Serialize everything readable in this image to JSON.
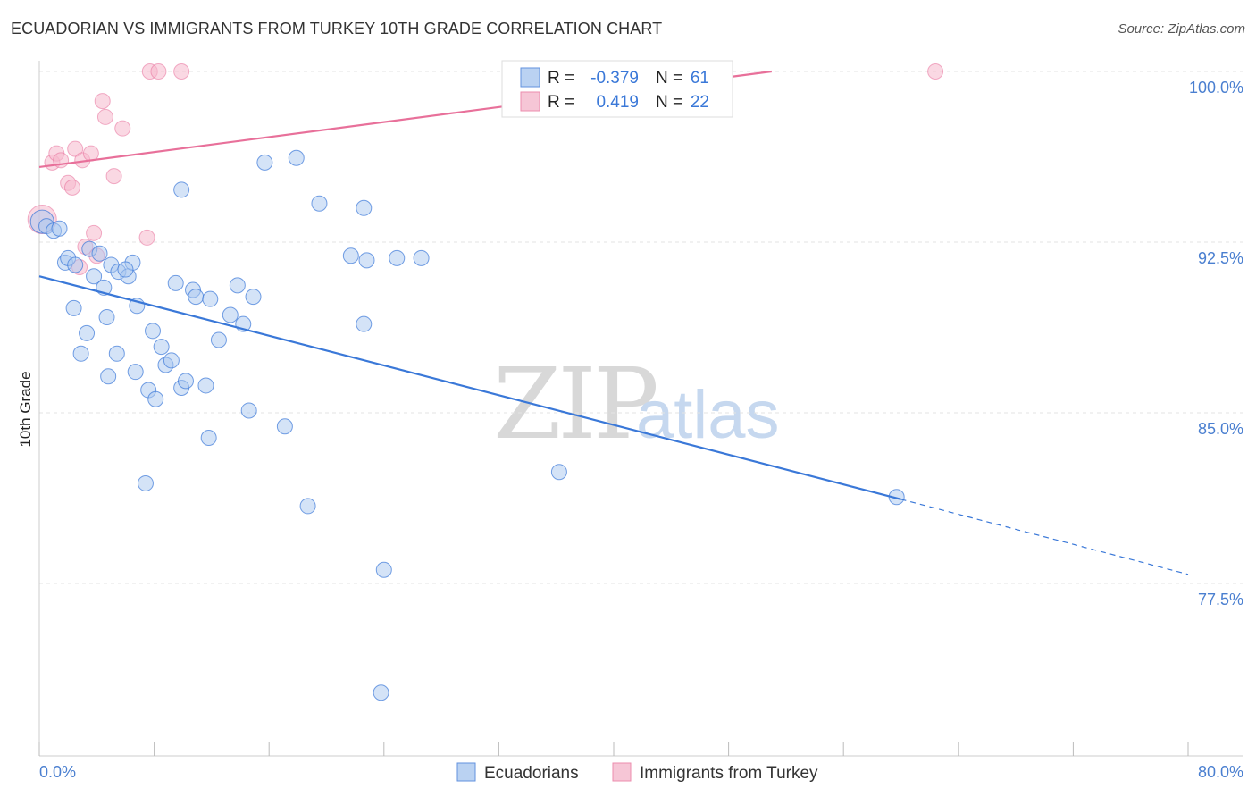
{
  "title": "ECUADORIAN VS IMMIGRANTS FROM TURKEY 10TH GRADE CORRELATION CHART",
  "source": "Source: ZipAtlas.com",
  "watermark": {
    "zip": "ZIP",
    "atlas": "atlas"
  },
  "colors": {
    "blue": "#3a78d8",
    "blue_fill": "#a9c8f0",
    "pink": "#e8709a",
    "pink_fill": "#f5b8cc",
    "grid": "#e3e3e3",
    "tick_label": "#4a7fd0"
  },
  "stats": [
    {
      "r_label": "R =",
      "r_value": "-0.379",
      "n_label": "N =",
      "n_value": "61",
      "color": "#3a78d8"
    },
    {
      "r_label": "R =",
      "r_value": "0.419",
      "n_label": "N =",
      "n_value": "22",
      "color": "#e8709a"
    }
  ],
  "legend": [
    {
      "label": "Ecuadorians",
      "color": "#3a78d8"
    },
    {
      "label": "Immigrants from Turkey",
      "color": "#e8709a"
    }
  ],
  "chart_data": {
    "type": "scatter",
    "ylabel": "10th Grade",
    "xlim": [
      0,
      80
    ],
    "ylim": [
      71.5,
      101.5
    ],
    "x_tick_labels": [
      "0.0%",
      "80.0%"
    ],
    "y_ticks": [
      {
        "value": 100.0,
        "label": "100.0%"
      },
      {
        "value": 92.5,
        "label": "92.5%"
      },
      {
        "value": 85.0,
        "label": "85.0%"
      },
      {
        "value": 77.5,
        "label": "77.5%"
      }
    ],
    "grid": true,
    "series": [
      {
        "name": "Ecuadorians",
        "color": "#3a78d8",
        "trend": {
          "x0": 0,
          "y0": 91.0,
          "x1": 60.0,
          "y1": 81.2,
          "dash_to_x": 80,
          "dash_to_y": 77.9
        },
        "points": [
          [
            0.2,
            93.4
          ],
          [
            0.5,
            93.2
          ],
          [
            1.0,
            93.0
          ],
          [
            1.4,
            93.1
          ],
          [
            1.8,
            91.6
          ],
          [
            2.0,
            91.8
          ],
          [
            2.5,
            91.5
          ],
          [
            3.5,
            92.2
          ],
          [
            3.8,
            91.0
          ],
          [
            4.2,
            92.0
          ],
          [
            4.5,
            90.5
          ],
          [
            5.0,
            91.5
          ],
          [
            5.5,
            91.2
          ],
          [
            6.2,
            91.0
          ],
          [
            6.5,
            91.6
          ],
          [
            2.4,
            89.6
          ],
          [
            3.3,
            88.5
          ],
          [
            2.9,
            87.6
          ],
          [
            4.7,
            89.2
          ],
          [
            5.4,
            87.6
          ],
          [
            4.8,
            86.6
          ],
          [
            6.8,
            89.7
          ],
          [
            7.9,
            88.6
          ],
          [
            6.7,
            86.8
          ],
          [
            7.6,
            86.0
          ],
          [
            8.1,
            85.6
          ],
          [
            8.5,
            87.9
          ],
          [
            8.8,
            87.1
          ],
          [
            9.2,
            87.3
          ],
          [
            9.9,
            86.1
          ],
          [
            10.2,
            86.4
          ],
          [
            9.5,
            90.7
          ],
          [
            10.7,
            90.4
          ],
          [
            10.9,
            90.1
          ],
          [
            11.9,
            90.0
          ],
          [
            11.6,
            86.2
          ],
          [
            11.8,
            83.9
          ],
          [
            12.5,
            88.2
          ],
          [
            13.3,
            89.3
          ],
          [
            13.8,
            90.6
          ],
          [
            14.2,
            88.9
          ],
          [
            14.9,
            90.1
          ],
          [
            14.6,
            85.1
          ],
          [
            17.1,
            84.4
          ],
          [
            15.7,
            96.0
          ],
          [
            17.9,
            96.2
          ],
          [
            9.9,
            94.8
          ],
          [
            19.5,
            94.2
          ],
          [
            21.7,
            91.9
          ],
          [
            22.6,
            94.0
          ],
          [
            22.8,
            91.7
          ],
          [
            24.9,
            91.8
          ],
          [
            26.6,
            91.8
          ],
          [
            22.6,
            88.9
          ],
          [
            7.4,
            81.9
          ],
          [
            18.7,
            80.9
          ],
          [
            24.0,
            78.1
          ],
          [
            23.8,
            72.7
          ],
          [
            36.2,
            82.4
          ],
          [
            59.7,
            81.3
          ],
          [
            6.0,
            91.3
          ]
        ]
      },
      {
        "name": "Immigrants from Turkey",
        "color": "#e8709a",
        "trend": {
          "x0": 0,
          "y0": 95.8,
          "x1": 51.0,
          "y1": 100.0
        },
        "points": [
          [
            0.2,
            93.5
          ],
          [
            0.9,
            96.0
          ],
          [
            1.2,
            96.4
          ],
          [
            1.5,
            96.1
          ],
          [
            2.0,
            95.1
          ],
          [
            2.3,
            94.9
          ],
          [
            2.5,
            96.6
          ],
          [
            3.0,
            96.1
          ],
          [
            3.6,
            96.4
          ],
          [
            4.4,
            98.7
          ],
          [
            4.6,
            98.0
          ],
          [
            5.2,
            95.4
          ],
          [
            5.8,
            97.5
          ],
          [
            7.7,
            100.0
          ],
          [
            8.3,
            100.0
          ],
          [
            9.9,
            100.0
          ],
          [
            3.2,
            92.3
          ],
          [
            3.8,
            92.9
          ],
          [
            7.5,
            92.7
          ],
          [
            2.8,
            91.4
          ],
          [
            62.4,
            100.0
          ],
          [
            4.0,
            91.9
          ]
        ]
      }
    ]
  }
}
